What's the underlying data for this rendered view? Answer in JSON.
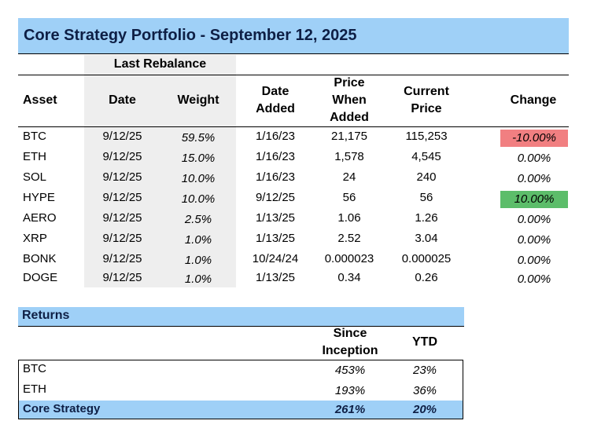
{
  "title": "Core Strategy Portfolio - September 12, 2025",
  "holdings": {
    "group_header": "Last Rebalance",
    "headers": {
      "asset": "Asset",
      "date": "Date",
      "weight": "Weight",
      "date_added": "Date Added",
      "price_when_added": "Price When Added",
      "current_price": "Current Price",
      "change": "Change"
    },
    "rows": [
      {
        "asset": "BTC",
        "date": "9/12/25",
        "weight": "59.5%",
        "date_added": "1/16/23",
        "price_added": "21,175",
        "current_price": "115,253",
        "change": "-10.00%",
        "change_status": "negative"
      },
      {
        "asset": "ETH",
        "date": "9/12/25",
        "weight": "15.0%",
        "date_added": "1/16/23",
        "price_added": "1,578",
        "current_price": "4,545",
        "change": "0.00%",
        "change_status": "neutral"
      },
      {
        "asset": "SOL",
        "date": "9/12/25",
        "weight": "10.0%",
        "date_added": "1/16/23",
        "price_added": "24",
        "current_price": "240",
        "change": "0.00%",
        "change_status": "neutral"
      },
      {
        "asset": "HYPE",
        "date": "9/12/25",
        "weight": "10.0%",
        "date_added": "9/12/25",
        "price_added": "56",
        "current_price": "56",
        "change": "10.00%",
        "change_status": "positive"
      },
      {
        "asset": "AERO",
        "date": "9/12/25",
        "weight": "2.5%",
        "date_added": "1/13/25",
        "price_added": "1.06",
        "current_price": "1.26",
        "change": "0.00%",
        "change_status": "neutral"
      },
      {
        "asset": "XRP",
        "date": "9/12/25",
        "weight": "1.0%",
        "date_added": "1/13/25",
        "price_added": "2.52",
        "current_price": "3.04",
        "change": "0.00%",
        "change_status": "neutral"
      },
      {
        "asset": "BONK",
        "date": "9/12/25",
        "weight": "1.0%",
        "date_added": "10/24/24",
        "price_added": "0.000023",
        "current_price": "0.000025",
        "change": "0.00%",
        "change_status": "neutral"
      },
      {
        "asset": "DOGE",
        "date": "9/12/25",
        "weight": "1.0%",
        "date_added": "1/13/25",
        "price_added": "0.34",
        "current_price": "0.26",
        "change": "0.00%",
        "change_status": "neutral"
      }
    ]
  },
  "returns": {
    "title": "Returns",
    "headers": {
      "since_inception": "Since Inception",
      "ytd": "YTD"
    },
    "rows": [
      {
        "name": "BTC",
        "since_inception": "453%",
        "ytd": "23%"
      },
      {
        "name": "ETH",
        "since_inception": "193%",
        "ytd": "36%"
      },
      {
        "name": "Core Strategy",
        "since_inception": "261%",
        "ytd": "20%"
      }
    ]
  },
  "colors": {
    "header_blue": "#9fd0f7",
    "negative": "#f17f81",
    "positive": "#5cbd6a",
    "shade": "#eeeeee"
  }
}
